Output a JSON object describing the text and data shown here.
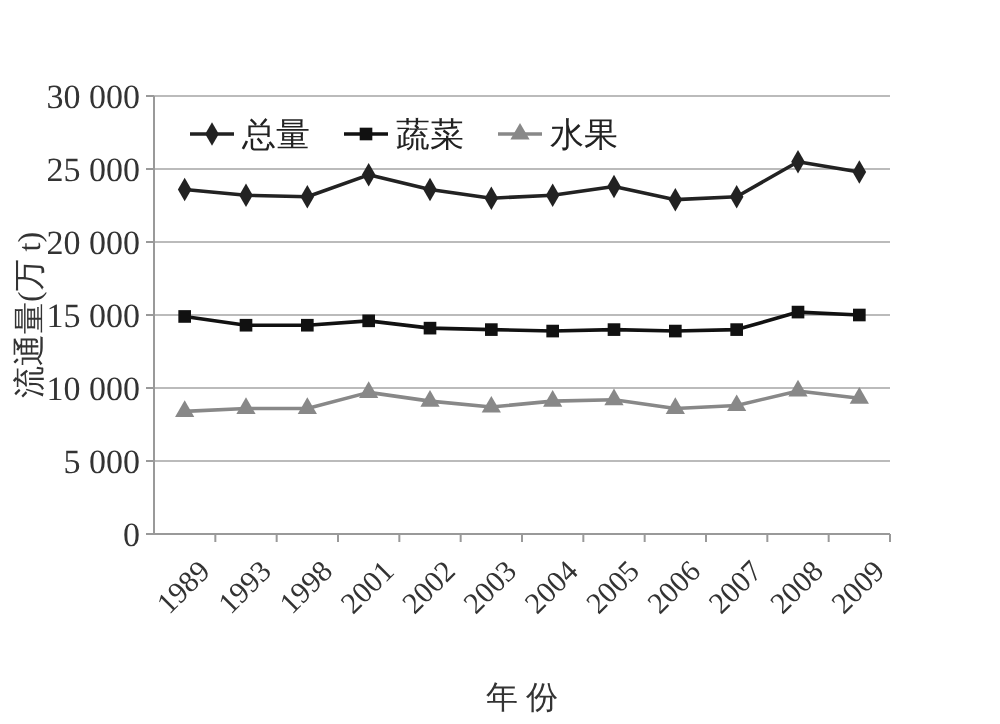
{
  "chart_data": {
    "type": "line",
    "xlabel": "年 份",
    "ylabel": "流通量(万 t)",
    "categories": [
      "1989",
      "1993",
      "1998",
      "2001",
      "2002",
      "2003",
      "2004",
      "2005",
      "2006",
      "2007",
      "2008",
      "2009"
    ],
    "series": [
      {
        "name": "总量",
        "color": "#222222",
        "marker": "diamond",
        "values": [
          23600,
          23200,
          23100,
          24600,
          23600,
          23000,
          23200,
          23800,
          22900,
          23100,
          25500,
          24800
        ]
      },
      {
        "name": "蔬菜",
        "color": "#111111",
        "marker": "square",
        "values": [
          14900,
          14300,
          14300,
          14600,
          14100,
          14000,
          13900,
          14000,
          13900,
          14000,
          15200,
          15000
        ]
      },
      {
        "name": "水果",
        "color": "#888888",
        "marker": "triangle",
        "values": [
          8400,
          8600,
          8600,
          9700,
          9100,
          8700,
          9100,
          9200,
          8600,
          8800,
          9800,
          9300
        ]
      }
    ],
    "ylim": [
      0,
      30000
    ],
    "yticks": [
      {
        "value": 0,
        "label": "0"
      },
      {
        "value": 5000,
        "label": "5 000"
      },
      {
        "value": 10000,
        "label": "10 000"
      },
      {
        "value": 15000,
        "label": "15 000"
      },
      {
        "value": 20000,
        "label": "20 000"
      },
      {
        "value": 25000,
        "label": "25 000"
      },
      {
        "value": 30000,
        "label": "30 000"
      }
    ],
    "grid": "y",
    "legend": "top left",
    "line_style": "solid"
  }
}
